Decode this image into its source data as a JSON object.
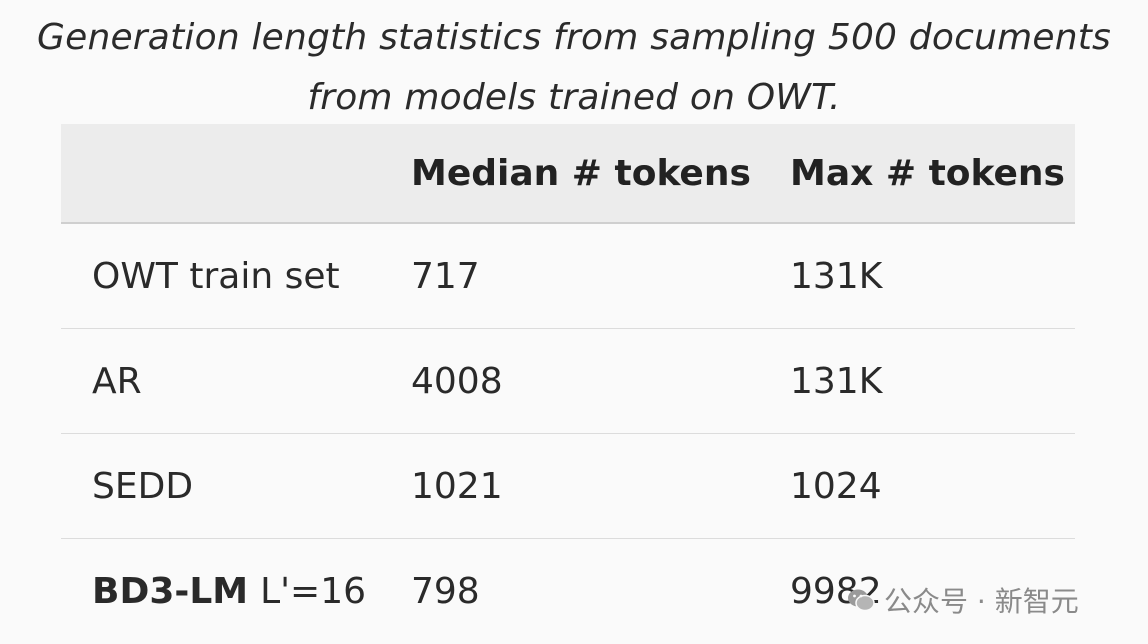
{
  "caption": {
    "line1": "Generation length statistics from sampling 500 documents",
    "line2": "from models trained on OWT."
  },
  "table": {
    "headers": [
      "",
      "Median # tokens",
      "Max # tokens"
    ],
    "rows": [
      {
        "model": "OWT train set",
        "median": "717",
        "max": "131K"
      },
      {
        "model": "AR",
        "median": "4008",
        "max": "131K"
      },
      {
        "model": "SEDD",
        "median": "1021",
        "max": "1024"
      },
      {
        "model_bold": "BD3-LM",
        "model_suffix": "L'=16",
        "median": "798",
        "max": "9982"
      }
    ]
  },
  "watermark": {
    "text": "公众号 · 新智元",
    "icon": "wechat-icon"
  }
}
